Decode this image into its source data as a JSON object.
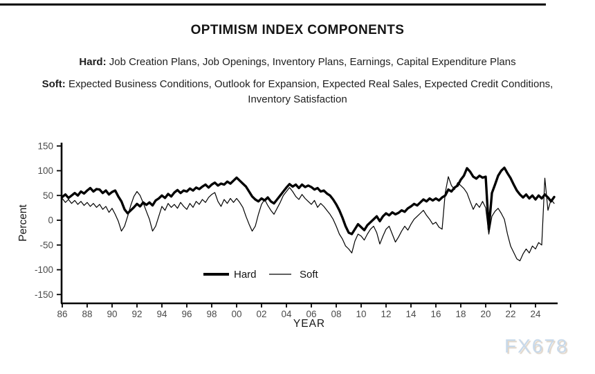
{
  "page": {
    "watermark": "FX678"
  },
  "header": {
    "title": "OPTIMISM INDEX COMPONENTS",
    "hard_label": "Hard:",
    "hard_text": " Job Creation Plans, Job Openings, Inventory Plans, Earnings, Capital Expenditure Plans",
    "soft_label": "Soft:",
    "soft_text": " Expected Business Conditions, Outlook for Expansion, Expected Real Sales, Expected Credit Conditions, Inventory Satisfaction"
  },
  "chart_data": {
    "type": "line",
    "title": "OPTIMISM INDEX COMPONENTS",
    "xlabel": "YEAR",
    "ylabel": "Percent",
    "x_start": 1986,
    "x_step": 0.25,
    "x_end": 2025.5,
    "xlim": [
      1985.9,
      2025.8
    ],
    "ylim": [
      -160,
      160
    ],
    "grid": false,
    "legend_position": "inside-bottom-center",
    "y_ticks": [
      150,
      100,
      50,
      0,
      -50,
      -100,
      -150
    ],
    "x_tick_positions": [
      1986,
      1988,
      1990,
      1992,
      1994,
      1996,
      1998,
      2000,
      2002,
      2004,
      2006,
      2008,
      2010,
      2012,
      2014,
      2016,
      2018,
      2020,
      2022,
      2024
    ],
    "x_tick_labels": [
      "86",
      "88",
      "90",
      "92",
      "94",
      "96",
      "98",
      "00",
      "02",
      "04",
      "06",
      "08",
      "10",
      "12",
      "14",
      "16",
      "18",
      "20",
      "22",
      "24"
    ],
    "line_color": "#000000",
    "series": [
      {
        "name": "Hard",
        "line_width": 3.4,
        "color": "#000000",
        "values": [
          47,
          52,
          45,
          50,
          55,
          50,
          58,
          54,
          60,
          65,
          58,
          63,
          62,
          55,
          60,
          52,
          57,
          60,
          48,
          38,
          22,
          14,
          20,
          26,
          33,
          28,
          36,
          31,
          36,
          30,
          40,
          44,
          50,
          45,
          53,
          48,
          56,
          61,
          55,
          60,
          58,
          64,
          60,
          66,
          63,
          68,
          72,
          66,
          72,
          76,
          70,
          74,
          72,
          78,
          74,
          80,
          86,
          80,
          74,
          68,
          58,
          48,
          42,
          38,
          44,
          40,
          46,
          38,
          34,
          42,
          50,
          58,
          66,
          73,
          68,
          72,
          65,
          72,
          67,
          70,
          67,
          62,
          65,
          58,
          60,
          54,
          50,
          42,
          32,
          20,
          5,
          -12,
          -25,
          -28,
          -18,
          -8,
          -14,
          -20,
          -10,
          -4,
          2,
          8,
          -2,
          8,
          14,
          10,
          16,
          12,
          15,
          20,
          17,
          24,
          28,
          33,
          30,
          36,
          42,
          38,
          44,
          40,
          44,
          40,
          46,
          50,
          62,
          58,
          66,
          70,
          82,
          90,
          105,
          98,
          88,
          84,
          90,
          86,
          88,
          -18,
          55,
          72,
          90,
          100,
          106,
          95,
          85,
          72,
          60,
          52,
          46,
          52,
          44,
          50,
          42,
          50,
          44,
          52,
          46,
          38,
          47
        ]
      },
      {
        "name": "Soft",
        "line_width": 1.2,
        "color": "#000000",
        "values": [
          44,
          36,
          42,
          34,
          40,
          32,
          38,
          30,
          36,
          28,
          34,
          26,
          32,
          22,
          28,
          16,
          24,
          12,
          -2,
          -22,
          -12,
          8,
          30,
          48,
          58,
          50,
          35,
          18,
          2,
          -22,
          -12,
          8,
          28,
          20,
          34,
          26,
          32,
          24,
          36,
          28,
          22,
          34,
          26,
          38,
          32,
          42,
          36,
          46,
          52,
          56,
          38,
          28,
          42,
          34,
          44,
          36,
          44,
          36,
          26,
          8,
          -8,
          -22,
          -12,
          12,
          32,
          42,
          30,
          20,
          12,
          24,
          36,
          50,
          58,
          66,
          58,
          48,
          42,
          52,
          44,
          38,
          32,
          40,
          26,
          34,
          28,
          20,
          12,
          2,
          -12,
          -28,
          -38,
          -52,
          -58,
          -66,
          -42,
          -28,
          -32,
          -40,
          -28,
          -18,
          -12,
          -25,
          -48,
          -32,
          -18,
          -12,
          -28,
          -44,
          -34,
          -22,
          -12,
          -20,
          -8,
          2,
          8,
          14,
          20,
          10,
          2,
          -8,
          -4,
          -14,
          -18,
          55,
          88,
          70,
          62,
          76,
          70,
          64,
          55,
          38,
          22,
          34,
          26,
          38,
          25,
          -28,
          8,
          18,
          24,
          14,
          2,
          -28,
          -52,
          -65,
          -78,
          -82,
          -68,
          -58,
          -66,
          -52,
          -58,
          -45,
          -50,
          85,
          20,
          42,
          34
        ]
      }
    ]
  },
  "colors": {
    "line": "#000000",
    "tick_text": "#4a4a4a",
    "heading_text": "#151515",
    "watermark": "#c8d9ea"
  }
}
